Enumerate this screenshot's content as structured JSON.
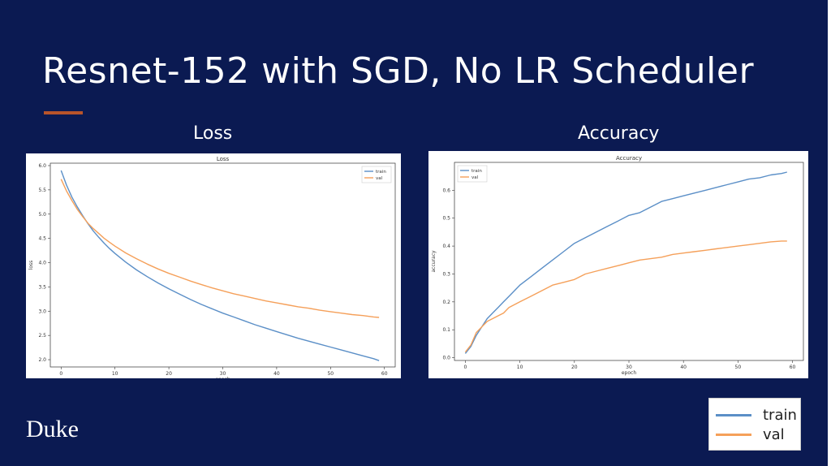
{
  "slide": {
    "title": "Resnet-152 with SGD, No LR Scheduler",
    "loss_heading": "Loss",
    "accuracy_heading": "Accuracy",
    "logo": "Duke",
    "legend": {
      "train": "train",
      "val": "val"
    },
    "colors": {
      "background": "#0b1a52",
      "accent": "#b8542a",
      "train": "#5b8fc7",
      "val": "#f5a05a"
    }
  },
  "chart_data": [
    {
      "type": "line",
      "title": "Loss",
      "xlabel": "epoch",
      "ylabel": "loss",
      "xlim": [
        -2,
        62
      ],
      "ylim": [
        1.85,
        6.05
      ],
      "xticks": [
        0,
        10,
        20,
        30,
        40,
        50,
        60
      ],
      "yticks": [
        2.0,
        2.5,
        3.0,
        3.5,
        4.0,
        4.5,
        5.0,
        5.5,
        6.0
      ],
      "legend_position": "top-right",
      "series": [
        {
          "name": "train",
          "color": "#5b8fc7",
          "x": [
            0,
            1,
            2,
            3,
            4,
            5,
            6,
            7,
            8,
            9,
            10,
            12,
            14,
            16,
            18,
            20,
            22,
            24,
            26,
            28,
            30,
            32,
            34,
            36,
            38,
            40,
            42,
            44,
            46,
            48,
            50,
            52,
            54,
            56,
            58,
            59
          ],
          "y": [
            5.9,
            5.6,
            5.35,
            5.15,
            4.97,
            4.8,
            4.65,
            4.52,
            4.4,
            4.29,
            4.19,
            4.01,
            3.85,
            3.71,
            3.58,
            3.46,
            3.35,
            3.24,
            3.14,
            3.05,
            2.96,
            2.88,
            2.8,
            2.72,
            2.65,
            2.58,
            2.51,
            2.44,
            2.38,
            2.32,
            2.26,
            2.2,
            2.14,
            2.08,
            2.02,
            1.98
          ]
        },
        {
          "name": "val",
          "color": "#f5a05a",
          "x": [
            0,
            1,
            2,
            3,
            4,
            5,
            6,
            7,
            8,
            9,
            10,
            12,
            14,
            16,
            18,
            20,
            22,
            24,
            26,
            28,
            30,
            32,
            34,
            36,
            38,
            40,
            42,
            44,
            46,
            48,
            50,
            52,
            54,
            56,
            58,
            59
          ],
          "y": [
            5.72,
            5.48,
            5.28,
            5.1,
            4.95,
            4.81,
            4.7,
            4.6,
            4.5,
            4.42,
            4.34,
            4.2,
            4.08,
            3.97,
            3.87,
            3.78,
            3.7,
            3.62,
            3.55,
            3.48,
            3.42,
            3.36,
            3.31,
            3.26,
            3.21,
            3.17,
            3.13,
            3.09,
            3.06,
            3.02,
            2.99,
            2.96,
            2.93,
            2.91,
            2.88,
            2.87
          ]
        }
      ]
    },
    {
      "type": "line",
      "title": "Accuracy",
      "xlabel": "epoch",
      "ylabel": "accuracy",
      "xlim": [
        -2,
        62
      ],
      "ylim": [
        -0.01,
        0.7
      ],
      "xticks": [
        0,
        10,
        20,
        30,
        40,
        50,
        60
      ],
      "yticks": [
        0.0,
        0.1,
        0.2,
        0.3,
        0.4,
        0.5,
        0.6
      ],
      "legend_position": "top-left",
      "series": [
        {
          "name": "train",
          "color": "#5b8fc7",
          "x": [
            0,
            1,
            2,
            3,
            4,
            5,
            6,
            7,
            8,
            9,
            10,
            12,
            14,
            16,
            18,
            20,
            22,
            24,
            26,
            28,
            30,
            32,
            34,
            36,
            38,
            40,
            42,
            44,
            46,
            48,
            50,
            52,
            54,
            56,
            58,
            59
          ],
          "y": [
            0.015,
            0.04,
            0.08,
            0.11,
            0.14,
            0.16,
            0.18,
            0.2,
            0.22,
            0.24,
            0.26,
            0.29,
            0.32,
            0.35,
            0.38,
            0.41,
            0.43,
            0.45,
            0.47,
            0.49,
            0.51,
            0.52,
            0.54,
            0.56,
            0.57,
            0.58,
            0.59,
            0.6,
            0.61,
            0.62,
            0.63,
            0.64,
            0.645,
            0.655,
            0.66,
            0.665
          ]
        },
        {
          "name": "val",
          "color": "#f5a05a",
          "x": [
            0,
            1,
            2,
            3,
            4,
            5,
            6,
            7,
            8,
            9,
            10,
            12,
            14,
            16,
            18,
            20,
            22,
            24,
            26,
            28,
            30,
            32,
            34,
            36,
            38,
            40,
            42,
            44,
            46,
            48,
            50,
            52,
            54,
            56,
            58,
            59
          ],
          "y": [
            0.02,
            0.045,
            0.09,
            0.11,
            0.13,
            0.14,
            0.15,
            0.16,
            0.18,
            0.19,
            0.2,
            0.22,
            0.24,
            0.26,
            0.27,
            0.28,
            0.3,
            0.31,
            0.32,
            0.33,
            0.34,
            0.35,
            0.355,
            0.36,
            0.37,
            0.375,
            0.38,
            0.385,
            0.39,
            0.395,
            0.4,
            0.405,
            0.41,
            0.415,
            0.418,
            0.418
          ]
        }
      ]
    }
  ]
}
